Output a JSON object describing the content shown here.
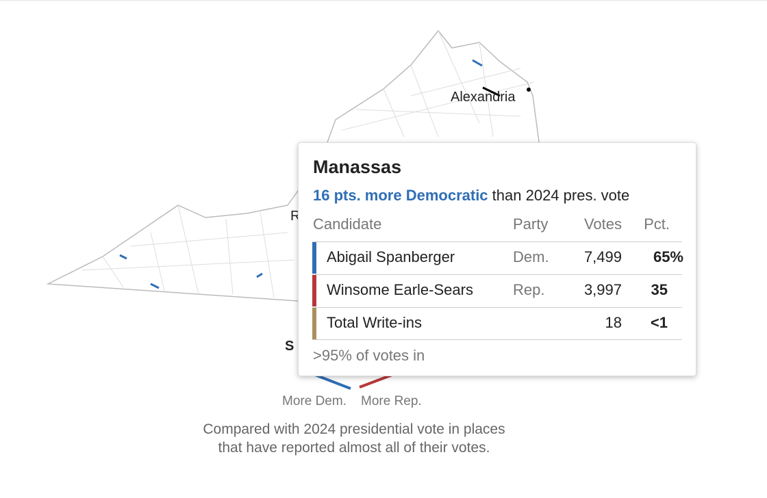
{
  "map": {
    "city_label": "Alexandria",
    "hidden_labels": [
      "R",
      "S"
    ]
  },
  "tooltip": {
    "title": "Manassas",
    "shift": {
      "highlight": "16 pts. more Democratic",
      "rest": "than 2024 pres. vote"
    },
    "columns": [
      "Candidate",
      "Party",
      "Votes",
      "Pct."
    ],
    "rows": [
      [
        "Abigail Spanberger",
        "Dem.",
        "7,499",
        "65%"
      ],
      [
        "Winsome Earle-Sears",
        "Rep.",
        "3,997",
        "35"
      ],
      [
        "Total Write-ins",
        "",
        "18",
        "<1"
      ]
    ],
    "footer": ">95% of votes in"
  },
  "legend": {
    "dem": "More Dem.",
    "rep": "More Rep.",
    "caption": [
      "Compared with 2024 presidential vote in places",
      "that have reported almost all of their votes."
    ]
  }
}
